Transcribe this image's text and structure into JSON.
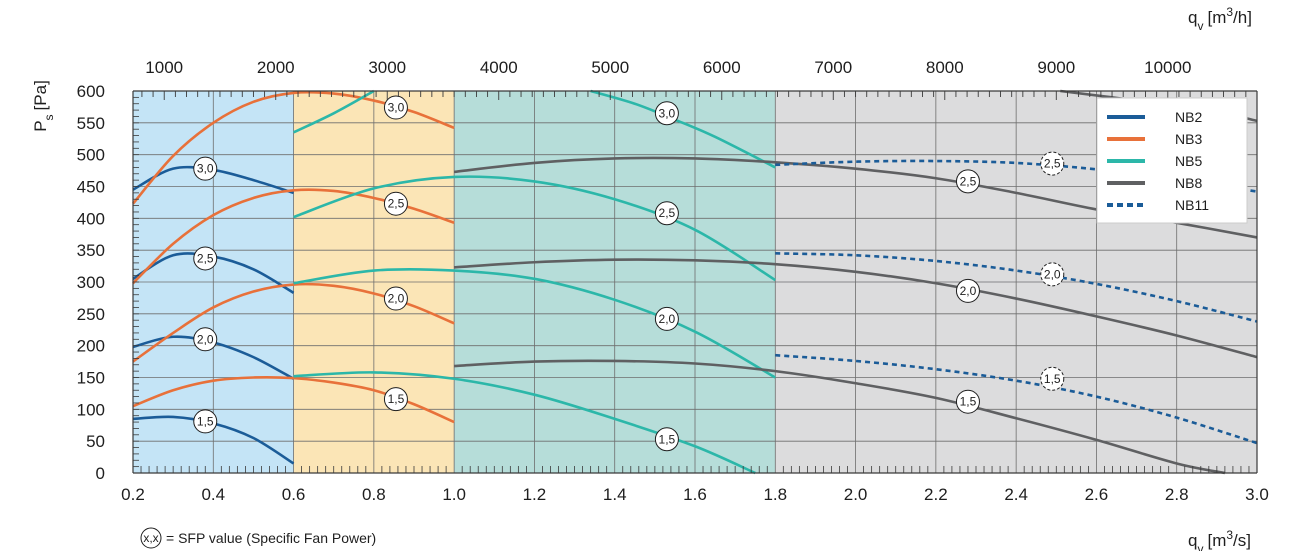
{
  "chart_data": {
    "type": "line",
    "title": "",
    "ylabel_main": "P",
    "ylabel_sub": "s",
    "ylabel_unit": "[Pa]",
    "xlabel_bottom_main": "q",
    "xlabel_bottom_sub": "v",
    "xlabel_bottom_unit": "[m3/s]",
    "xlabel_top_main": "q",
    "xlabel_top_sub": "v",
    "xlabel_top_unit": "[m3/h]",
    "xlim": [
      0.2,
      3.0
    ],
    "ylim": [
      0,
      600
    ],
    "x_ticks": [
      "0.2",
      "0.4",
      "0.6",
      "0.8",
      "1.0",
      "1.2",
      "1.4",
      "1.6",
      "1.8",
      "2.0",
      "2.2",
      "2.4",
      "2.6",
      "2.8",
      "3.0"
    ],
    "y_ticks": [
      "0",
      "50",
      "100",
      "150",
      "200",
      "250",
      "300",
      "350",
      "400",
      "450",
      "500",
      "550",
      "600"
    ],
    "top_ticks": [
      "1000",
      "2000",
      "3000",
      "4000",
      "5000",
      "6000",
      "7000",
      "8000",
      "9000",
      "10000"
    ],
    "grid": true,
    "legend_position": "top-right",
    "footnote_symbol": "x,x",
    "footnote_text": "= SFP value (Specific Fan Power)",
    "regions": [
      {
        "name": "NB2",
        "x": [
          0.2,
          0.6
        ],
        "color": "#c4e4f6"
      },
      {
        "name": "NB3",
        "x": [
          0.6,
          1.0
        ],
        "color": "#fbe5b6"
      },
      {
        "name": "NB5",
        "x": [
          1.0,
          1.8
        ],
        "color": "#b6ddd9"
      },
      {
        "name": "NB8",
        "x": [
          1.8,
          3.0
        ],
        "color": "#dcdcdd"
      }
    ],
    "series": [
      {
        "name": "NB2",
        "color": "#1b5c98",
        "dash": false,
        "curves": [
          {
            "sfp": "3,0",
            "points": [
              [
                0.2,
                445
              ],
              [
                0.3,
                478
              ],
              [
                0.4,
                476
              ],
              [
                0.5,
                460
              ],
              [
                0.6,
                440
              ]
            ]
          },
          {
            "sfp": "2,5",
            "points": [
              [
                0.2,
                305
              ],
              [
                0.3,
                342
              ],
              [
                0.4,
                340
              ],
              [
                0.5,
                320
              ],
              [
                0.6,
                283
              ]
            ]
          },
          {
            "sfp": "2,0",
            "points": [
              [
                0.2,
                198
              ],
              [
                0.3,
                214
              ],
              [
                0.4,
                205
              ],
              [
                0.5,
                182
              ],
              [
                0.6,
                148
              ]
            ]
          },
          {
            "sfp": "1,5",
            "points": [
              [
                0.2,
                85
              ],
              [
                0.3,
                88
              ],
              [
                0.4,
                78
              ],
              [
                0.5,
                55
              ],
              [
                0.6,
                15
              ]
            ]
          }
        ]
      },
      {
        "name": "NB3",
        "color": "#e8713a",
        "dash": false,
        "curves": [
          {
            "sfp": "3,0",
            "points": [
              [
                0.2,
                423
              ],
              [
                0.3,
                498
              ],
              [
                0.4,
                550
              ],
              [
                0.5,
                583
              ],
              [
                0.6,
                597
              ],
              [
                0.7,
                596
              ],
              [
                0.8,
                585
              ],
              [
                0.9,
                567
              ],
              [
                1.0,
                542
              ]
            ]
          },
          {
            "sfp": "2,5",
            "points": [
              [
                0.2,
                298
              ],
              [
                0.3,
                360
              ],
              [
                0.4,
                405
              ],
              [
                0.5,
                432
              ],
              [
                0.6,
                444
              ],
              [
                0.7,
                443
              ],
              [
                0.8,
                432
              ],
              [
                0.9,
                415
              ],
              [
                1.0,
                393
              ]
            ]
          },
          {
            "sfp": "2,0",
            "points": [
              [
                0.2,
                175
              ],
              [
                0.3,
                220
              ],
              [
                0.4,
                260
              ],
              [
                0.5,
                285
              ],
              [
                0.6,
                296
              ],
              [
                0.7,
                294
              ],
              [
                0.8,
                282
              ],
              [
                0.9,
                262
              ],
              [
                1.0,
                235
              ]
            ]
          },
          {
            "sfp": "1,5",
            "points": [
              [
                0.2,
                105
              ],
              [
                0.3,
                130
              ],
              [
                0.4,
                145
              ],
              [
                0.5,
                150
              ],
              [
                0.6,
                149
              ],
              [
                0.7,
                142
              ],
              [
                0.8,
                130
              ],
              [
                0.9,
                108
              ],
              [
                1.0,
                80
              ]
            ]
          }
        ]
      },
      {
        "name": "NB5",
        "color": "#2cb7a9",
        "dash": false,
        "curves": [
          {
            "sfp": "3,0",
            "points": [
              [
                0.6,
                535
              ],
              [
                0.7,
                565
              ],
              [
                0.8,
                600
              ]
            ]
          },
          {
            "sfp": "3,0",
            "points": [
              [
                1.34,
                600
              ],
              [
                1.45,
                580
              ],
              [
                1.55,
                555
              ],
              [
                1.65,
                528
              ],
              [
                1.8,
                480
              ]
            ]
          },
          {
            "sfp": "2,5",
            "points": [
              [
                0.6,
                402
              ],
              [
                0.8,
                447
              ],
              [
                1.0,
                465
              ],
              [
                1.2,
                458
              ],
              [
                1.4,
                430
              ],
              [
                1.6,
                382
              ],
              [
                1.8,
                303
              ]
            ]
          },
          {
            "sfp": "2,0",
            "points": [
              [
                0.6,
                298
              ],
              [
                0.8,
                318
              ],
              [
                1.0,
                318
              ],
              [
                1.2,
                305
              ],
              [
                1.4,
                272
              ],
              [
                1.6,
                222
              ],
              [
                1.8,
                150
              ]
            ]
          },
          {
            "sfp": "1,5",
            "points": [
              [
                0.6,
                152
              ],
              [
                0.8,
                158
              ],
              [
                1.0,
                148
              ],
              [
                1.2,
                123
              ],
              [
                1.4,
                85
              ],
              [
                1.6,
                42
              ],
              [
                1.75,
                0
              ]
            ]
          }
        ]
      },
      {
        "name": "NB8",
        "color": "#5f6062",
        "dash": false,
        "curves": [
          {
            "sfp": "2,5",
            "points": [
              [
                1.0,
                473
              ],
              [
                1.2,
                487
              ],
              [
                1.4,
                494
              ],
              [
                1.6,
                494
              ],
              [
                1.8,
                488
              ],
              [
                2.0,
                478
              ],
              [
                2.2,
                463
              ],
              [
                2.4,
                440
              ],
              [
                2.6,
                414
              ],
              [
                2.8,
                393
              ],
              [
                3.0,
                370
              ]
            ]
          },
          {
            "sfp": "2,0",
            "points": [
              [
                1.0,
                323
              ],
              [
                1.2,
                331
              ],
              [
                1.4,
                335
              ],
              [
                1.6,
                334
              ],
              [
                1.8,
                328
              ],
              [
                2.0,
                316
              ],
              [
                2.2,
                298
              ],
              [
                2.4,
                274
              ],
              [
                2.6,
                246
              ],
              [
                2.8,
                216
              ],
              [
                3.0,
                182
              ]
            ]
          },
          {
            "sfp": "1,5",
            "points": [
              [
                1.0,
                168
              ],
              [
                1.2,
                175
              ],
              [
                1.4,
                176
              ],
              [
                1.6,
                172
              ],
              [
                1.8,
                160
              ],
              [
                2.0,
                141
              ],
              [
                2.2,
                118
              ],
              [
                2.4,
                86
              ],
              [
                2.6,
                52
              ],
              [
                2.8,
                15
              ],
              [
                2.92,
                0
              ]
            ]
          },
          {
            "sfp": "3,0",
            "points": [
              [
                2.51,
                600
              ],
              [
                2.7,
                585
              ],
              [
                2.9,
                567
              ],
              [
                3.0,
                553
              ]
            ]
          }
        ]
      },
      {
        "name": "NB11",
        "color": "#1b5c98",
        "dash": true,
        "curves": [
          {
            "sfp": "2,5",
            "points": [
              [
                1.8,
                484
              ],
              [
                2.0,
                489
              ],
              [
                2.2,
                490
              ],
              [
                2.4,
                487
              ],
              [
                2.6,
                477
              ],
              [
                2.8,
                462
              ],
              [
                3.0,
                442
              ]
            ]
          },
          {
            "sfp": "2,0",
            "points": [
              [
                1.8,
                345
              ],
              [
                2.0,
                342
              ],
              [
                2.2,
                333
              ],
              [
                2.4,
                318
              ],
              [
                2.6,
                297
              ],
              [
                2.8,
                270
              ],
              [
                3.0,
                238
              ]
            ]
          },
          {
            "sfp": "1,5",
            "points": [
              [
                1.8,
                185
              ],
              [
                2.0,
                176
              ],
              [
                2.2,
                163
              ],
              [
                2.4,
                145
              ],
              [
                2.6,
                120
              ],
              [
                2.8,
                87
              ],
              [
                3.0,
                47
              ]
            ]
          }
        ]
      }
    ],
    "sfp_labels": [
      {
        "text": "3,0",
        "x": 0.38,
        "y": 478,
        "dash": false
      },
      {
        "text": "2,5",
        "x": 0.38,
        "y": 337,
        "dash": false
      },
      {
        "text": "2,0",
        "x": 0.38,
        "y": 210,
        "dash": false
      },
      {
        "text": "1,5",
        "x": 0.38,
        "y": 81,
        "dash": false
      },
      {
        "text": "3,0",
        "x": 0.855,
        "y": 574,
        "dash": false
      },
      {
        "text": "2,5",
        "x": 0.855,
        "y": 423,
        "dash": false
      },
      {
        "text": "2,0",
        "x": 0.855,
        "y": 274,
        "dash": false
      },
      {
        "text": "1,5",
        "x": 0.855,
        "y": 116,
        "dash": false
      },
      {
        "text": "3,0",
        "x": 1.53,
        "y": 565,
        "dash": false
      },
      {
        "text": "2,5",
        "x": 1.53,
        "y": 408,
        "dash": false
      },
      {
        "text": "2,0",
        "x": 1.53,
        "y": 242,
        "dash": false
      },
      {
        "text": "1,5",
        "x": 1.53,
        "y": 53,
        "dash": false
      },
      {
        "text": "2,5",
        "x": 2.28,
        "y": 458,
        "dash": false
      },
      {
        "text": "2,0",
        "x": 2.28,
        "y": 286,
        "dash": false
      },
      {
        "text": "1,5",
        "x": 2.28,
        "y": 112,
        "dash": false
      },
      {
        "text": "2,5",
        "x": 2.49,
        "y": 486,
        "dash": true
      },
      {
        "text": "2,0",
        "x": 2.49,
        "y": 312,
        "dash": true
      },
      {
        "text": "1,5",
        "x": 2.49,
        "y": 148,
        "dash": true
      }
    ]
  }
}
